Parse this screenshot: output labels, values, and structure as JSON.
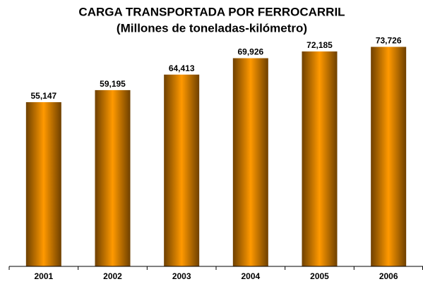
{
  "chart_data": {
    "type": "bar",
    "title": "CARGA TRANSPORTADA POR FERROCARRIL",
    "subtitle": "(Millones de toneladas-kilómetro)",
    "categories": [
      "2001",
      "2002",
      "2003",
      "2004",
      "2005",
      "2006"
    ],
    "values": [
      55147,
      59195,
      64413,
      69926,
      72185,
      73726
    ],
    "value_labels": [
      "55,147",
      "59,195",
      "64,413",
      "69,926",
      "72,185",
      "73,726"
    ],
    "color": "#ff9900",
    "ylim": [
      0,
      80000
    ]
  }
}
